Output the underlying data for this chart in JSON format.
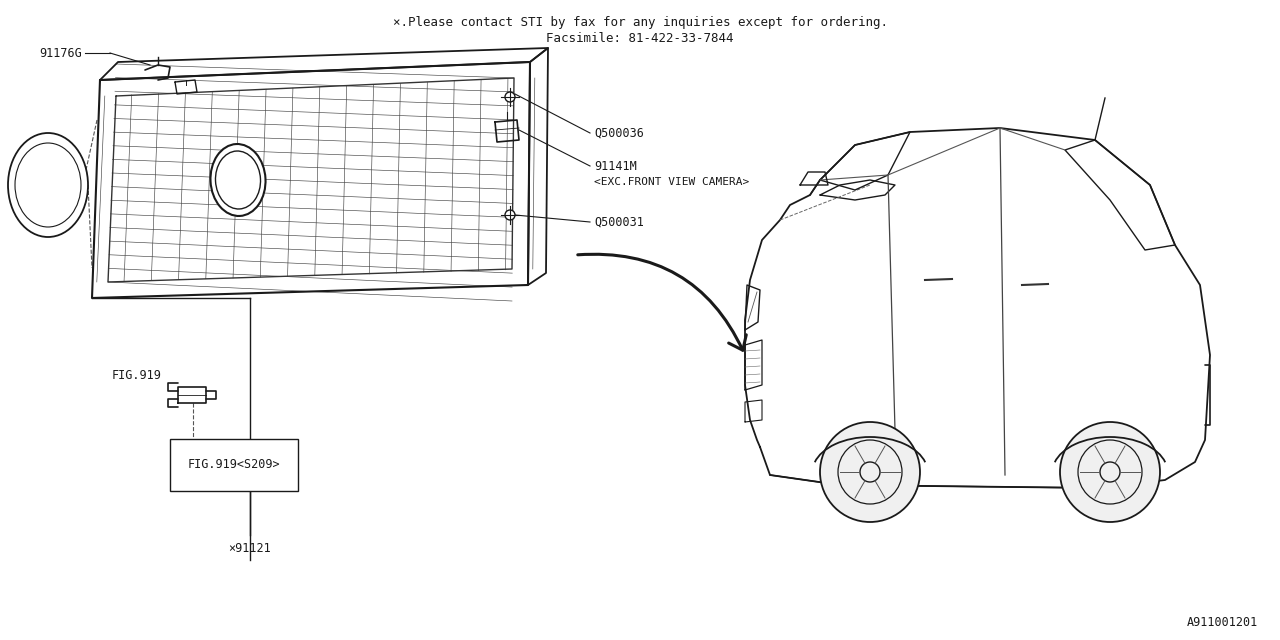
{
  "bg_color": "#ffffff",
  "line_color": "#1a1a1a",
  "title_line1": "×.Please contact STI by fax for any inquiries except for ordering.",
  "title_line2": "Facsimile: 81-422-33-7844",
  "fig919_label": "FIG.919",
  "fig919_box_label": "FIG.919<S209>",
  "asterisk91121": "×91121",
  "diagram_code": "A911001201",
  "font_family": "monospace",
  "label_91176G": "91176G",
  "label_Q500036": "Q500036",
  "label_91141M": "91141M",
  "label_exc": "<EXC.FRONT VIEW CAMERA>",
  "label_Q500031": "Q500031"
}
